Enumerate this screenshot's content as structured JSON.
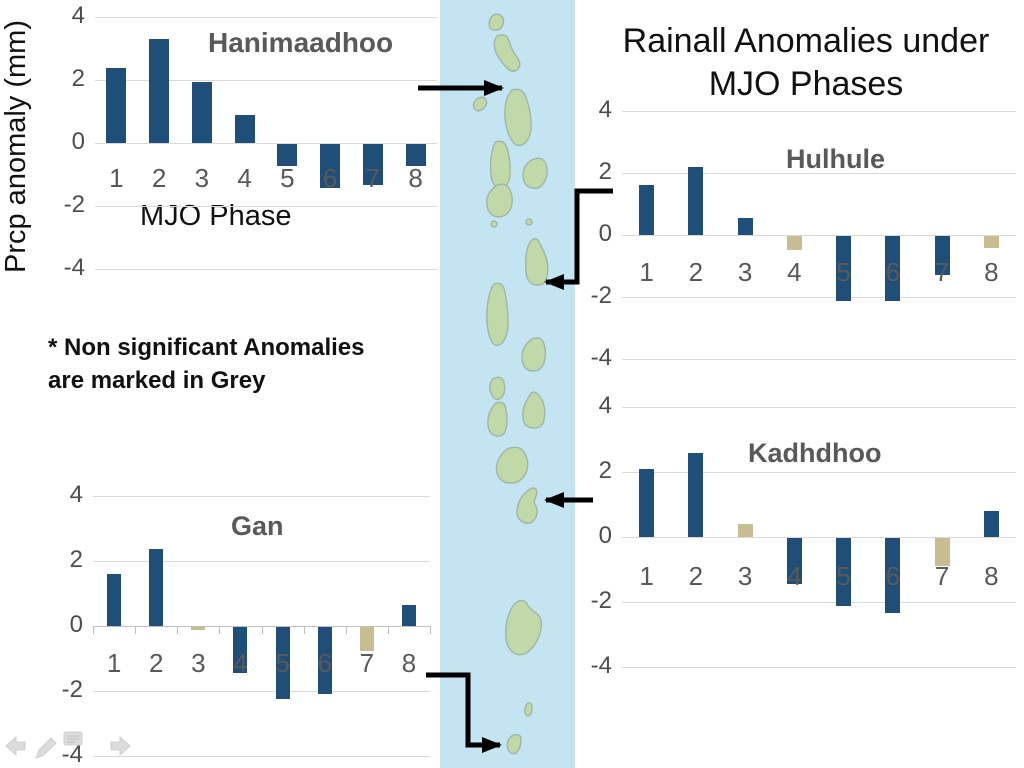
{
  "slide": {
    "title_lines": [
      "Rainall Anomalies under",
      "MJO Phases"
    ],
    "note_lines": [
      "* Non significant Anomalies",
      "are marked in Grey"
    ],
    "y_axis_label": "Prcp anomaly (mm)",
    "x_axis_label": "MJO Phase"
  },
  "colors": {
    "significant_bar": "#1f4e79",
    "non_significant_bar": "#c7bd93",
    "gridline": "#d9d9d9",
    "axis_line": "#bfbfbf",
    "title_grey": "#595959",
    "water": "#c5e4f1",
    "island_fill": "#c1d8a8",
    "island_stroke": "#9fb6a9",
    "arrow_black": "#000000",
    "nav_icon_grey": "#dcdcdc"
  },
  "chart_data": [
    {
      "type": "bar",
      "station": "Hanimaadhoo",
      "categories": [
        "1",
        "2",
        "3",
        "4",
        "5",
        "6",
        "7",
        "8"
      ],
      "values": [
        2.4,
        3.3,
        1.95,
        0.9,
        -0.7,
        -1.4,
        -1.3,
        -0.7
      ],
      "significant": [
        true,
        true,
        true,
        true,
        true,
        true,
        true,
        true
      ],
      "xlabel": "MJO Phase",
      "ylabel": "Prcp anomaly (mm)",
      "ylim": [
        -4,
        4
      ],
      "yticks": [
        4,
        2,
        0,
        -2,
        -4
      ],
      "grid": true,
      "legend": false
    },
    {
      "type": "bar",
      "station": "Hulhule",
      "categories": [
        "1",
        "2",
        "3",
        "4",
        "5",
        "6",
        "7",
        "8"
      ],
      "values": [
        1.6,
        2.2,
        0.55,
        -0.45,
        -2.1,
        -2.1,
        -1.25,
        -0.4
      ],
      "significant": [
        true,
        true,
        true,
        false,
        true,
        true,
        true,
        false
      ],
      "ylim": [
        -4,
        4
      ],
      "yticks": [
        4,
        2,
        0,
        -2,
        -4
      ],
      "grid": true,
      "legend": false
    },
    {
      "type": "bar",
      "station": "Kadhdhoo",
      "categories": [
        "1",
        "2",
        "3",
        "4",
        "5",
        "6",
        "7",
        "8"
      ],
      "values": [
        2.1,
        2.6,
        0.4,
        -1.4,
        -2.1,
        -2.3,
        -0.85,
        0.8
      ],
      "significant": [
        true,
        true,
        false,
        true,
        true,
        true,
        false,
        true
      ],
      "ylim": [
        -4,
        4
      ],
      "yticks": [
        4,
        2,
        0,
        -2,
        -4
      ],
      "grid": true,
      "legend": false
    },
    {
      "type": "bar",
      "station": "Gan",
      "categories": [
        "1",
        "2",
        "3",
        "4",
        "5",
        "6",
        "7",
        "8"
      ],
      "values": [
        1.6,
        2.35,
        -0.1,
        -1.4,
        -2.2,
        -2.05,
        -0.75,
        0.65
      ],
      "significant": [
        true,
        true,
        false,
        true,
        true,
        true,
        false,
        true
      ],
      "ylim": [
        -4,
        4
      ],
      "yticks": [
        4,
        2,
        0,
        -2,
        -4
      ],
      "grid": true,
      "legend": false
    }
  ],
  "nav": {
    "icons": [
      "previous-slide",
      "pen",
      "comments",
      "next-slide"
    ]
  }
}
